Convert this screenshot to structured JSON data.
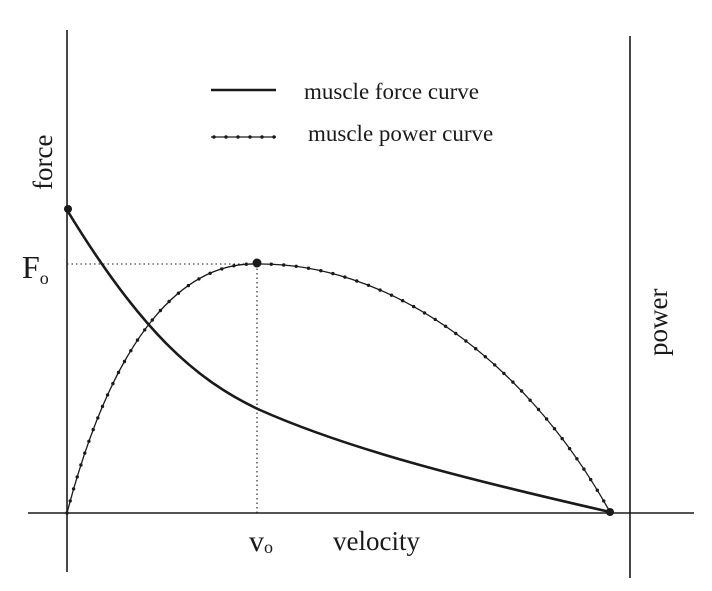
{
  "labels": {
    "y_axis_left": "force",
    "y_axis_right": "power",
    "x_axis": "velocity",
    "f_symbol": "F",
    "f_subscript": "o",
    "v_symbol": "v",
    "v_subscript": "o"
  },
  "legend": {
    "force_curve": "muscle force curve",
    "power_curve": "muscle power curve"
  },
  "colors": {
    "ink": "#1a1a1a",
    "background": "#ffffff"
  }
}
